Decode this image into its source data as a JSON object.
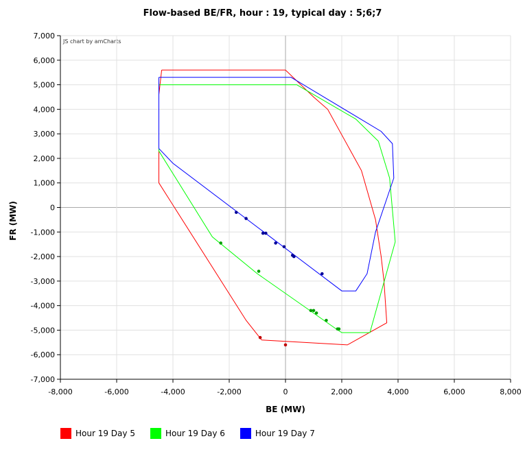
{
  "chart_data": {
    "type": "scatter",
    "title": "Flow-based BE/FR, hour : 19, typical day : 5;6;7",
    "credit": "JS chart by amCharts",
    "xlabel": "BE (MW)",
    "ylabel": "FR (MW)",
    "xlim": [
      -8000,
      8000
    ],
    "ylim": [
      -7000,
      7000
    ],
    "x_ticks": [
      -8000,
      -6000,
      -4000,
      -2000,
      0,
      2000,
      4000,
      6000,
      8000
    ],
    "y_ticks": [
      -7000,
      -6000,
      -5000,
      -4000,
      -3000,
      -2000,
      -1000,
      0,
      1000,
      2000,
      3000,
      4000,
      5000,
      6000,
      7000
    ],
    "x_tick_labels": [
      "-8,000",
      "-6,000",
      "-4,000",
      "-2,000",
      "0",
      "2,000",
      "4,000",
      "6,000",
      "8,000"
    ],
    "y_tick_labels": [
      "-7,000",
      "-6,000",
      "-5,000",
      "-4,000",
      "-3,000",
      "-2,000",
      "-1,000",
      "0",
      "1,000",
      "2,000",
      "3,000",
      "4,000",
      "5,000",
      "6,000",
      "7,000"
    ],
    "grid": true,
    "legend_position": "bottom-left",
    "series": [
      {
        "name": "Hour 19 Day 5",
        "color": "#ff0000",
        "domain": [
          [
            -4400,
            5600
          ],
          [
            0,
            5600
          ],
          [
            1000,
            4500
          ],
          [
            1500,
            4000
          ],
          [
            2700,
            1500
          ],
          [
            3200,
            -500
          ],
          [
            3400,
            -2000
          ],
          [
            3500,
            -3000
          ],
          [
            3600,
            -4700
          ],
          [
            2200,
            -5600
          ],
          [
            -850,
            -5400
          ],
          [
            -1400,
            -4600
          ],
          [
            -4500,
            1000
          ],
          [
            -4500,
            4600
          ],
          [
            -4400,
            5600
          ]
        ],
        "points": [
          [
            -900,
            -5300
          ],
          [
            0,
            -5600
          ]
        ]
      },
      {
        "name": "Hour 19 Day 6",
        "color": "#00ff00",
        "domain": [
          [
            -4500,
            5000
          ],
          [
            400,
            5000
          ],
          [
            2500,
            3600
          ],
          [
            3300,
            2700
          ],
          [
            3700,
            1200
          ],
          [
            3900,
            -1400
          ],
          [
            3000,
            -5100
          ],
          [
            2000,
            -5100
          ],
          [
            1800,
            -4950
          ],
          [
            -1000,
            -2700
          ],
          [
            -2600,
            -1200
          ],
          [
            -4500,
            2300
          ],
          [
            -4500,
            5000
          ]
        ],
        "points": [
          [
            -2300,
            -1450
          ],
          [
            -950,
            -2600
          ],
          [
            900,
            -4200
          ],
          [
            1100,
            -4300
          ],
          [
            1450,
            -4600
          ],
          [
            1850,
            -4950
          ],
          [
            1900,
            -4950
          ],
          [
            1000,
            -4200
          ]
        ]
      },
      {
        "name": "Hour 19 Day 7",
        "color": "#0000ff",
        "domain": [
          [
            -4500,
            5300
          ],
          [
            200,
            5300
          ],
          [
            3400,
            3100
          ],
          [
            3800,
            2600
          ],
          [
            3850,
            1200
          ],
          [
            3200,
            -1000
          ],
          [
            2900,
            -2700
          ],
          [
            2500,
            -3400
          ],
          [
            2000,
            -3400
          ],
          [
            -4000,
            1800
          ],
          [
            -4500,
            2400
          ],
          [
            -4500,
            5300
          ]
        ],
        "points": [
          [
            -1750,
            -200
          ],
          [
            -1400,
            -450
          ],
          [
            -800,
            -1050
          ],
          [
            -700,
            -1050
          ],
          [
            -350,
            -1450
          ],
          [
            -50,
            -1600
          ],
          [
            250,
            -1950
          ],
          [
            300,
            -2000
          ],
          [
            1300,
            -2700
          ]
        ]
      }
    ]
  }
}
